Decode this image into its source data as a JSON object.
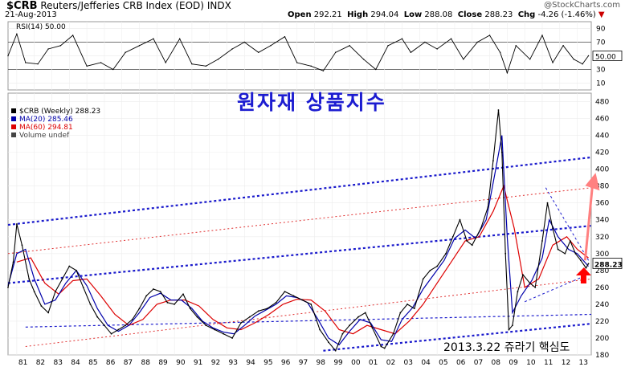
{
  "header": {
    "symbol": "$CRB",
    "name": "Reuters/Jefferies CRB Index (EOD)",
    "exchange": "INDX",
    "watermark": "@StockCharts.com",
    "date": "21-Aug-2013",
    "open_label": "Open",
    "open": "292.21",
    "high_label": "High",
    "high": "294.04",
    "low_label": "Low",
    "low": "288.08",
    "close_label": "Close",
    "close": "288.23",
    "chg_label": "Chg",
    "chg": "-4.26 (-1.46%)",
    "down_marker": "▼"
  },
  "rsi_panel": {
    "legend": "RSI(14) 50.00",
    "ticks": [
      "90",
      "70",
      "50",
      "30",
      "10"
    ],
    "current_value": "50.00"
  },
  "price_panel": {
    "legend_main": "$CRB (Weekly) 288.23",
    "legend_ma20": "MA(20) 285.46",
    "legend_ma60": "MA(60) 294.81",
    "legend_vol": "Volume undef",
    "annotation_title": "원자재 상품지수",
    "annotation_footer": "2013.3.22  쥬라기  핵심도",
    "last_label": "288.23"
  },
  "colors": {
    "price": "#000000",
    "ma20": "#0000aa",
    "ma60": "#dd0000",
    "channel_blue": "#1a1acc",
    "channel_red": "#e03030",
    "arrow": "#ff0000",
    "arrow_light": "#ff8080",
    "annotation": "#1c1cd0"
  },
  "chart_data": {
    "type": "line",
    "ylim": [
      180,
      490
    ],
    "yticks": [
      180,
      200,
      220,
      240,
      260,
      280,
      300,
      320,
      340,
      360,
      380,
      400,
      420,
      440,
      460,
      480
    ],
    "x_ticks": [
      "81",
      "82",
      "83",
      "84",
      "85",
      "86",
      "87",
      "88",
      "89",
      "90",
      "91",
      "92",
      "93",
      "94",
      "95",
      "96",
      "97",
      "98",
      "99",
      "00",
      "01",
      "02",
      "03",
      "04",
      "05",
      "06",
      "07",
      "08",
      "09",
      "10",
      "11",
      "12",
      "13"
    ],
    "x_start_year": 1980.5,
    "x_end_year": 2013.8,
    "price_series": [
      [
        1980.5,
        260
      ],
      [
        1980.8,
        290
      ],
      [
        1981.0,
        335
      ],
      [
        1981.3,
        310
      ],
      [
        1981.7,
        270
      ],
      [
        1982.0,
        255
      ],
      [
        1982.4,
        238
      ],
      [
        1982.8,
        230
      ],
      [
        1983.2,
        255
      ],
      [
        1983.6,
        270
      ],
      [
        1984.0,
        285
      ],
      [
        1984.4,
        280
      ],
      [
        1984.8,
        260
      ],
      [
        1985.2,
        240
      ],
      [
        1985.6,
        225
      ],
      [
        1986.0,
        215
      ],
      [
        1986.4,
        205
      ],
      [
        1986.8,
        210
      ],
      [
        1987.2,
        215
      ],
      [
        1987.6,
        222
      ],
      [
        1988.0,
        235
      ],
      [
        1988.4,
        250
      ],
      [
        1988.8,
        258
      ],
      [
        1989.2,
        255
      ],
      [
        1989.6,
        242
      ],
      [
        1990.0,
        240
      ],
      [
        1990.5,
        252
      ],
      [
        1990.9,
        235
      ],
      [
        1991.3,
        225
      ],
      [
        1991.8,
        215
      ],
      [
        1992.3,
        210
      ],
      [
        1992.8,
        205
      ],
      [
        1993.3,
        200
      ],
      [
        1993.8,
        218
      ],
      [
        1994.3,
        225
      ],
      [
        1994.8,
        232
      ],
      [
        1995.3,
        235
      ],
      [
        1995.8,
        242
      ],
      [
        1996.3,
        255
      ],
      [
        1996.8,
        250
      ],
      [
        1997.3,
        245
      ],
      [
        1997.8,
        240
      ],
      [
        1998.3,
        210
      ],
      [
        1998.8,
        195
      ],
      [
        1999.2,
        185
      ],
      [
        1999.6,
        205
      ],
      [
        2000.0,
        215
      ],
      [
        2000.5,
        225
      ],
      [
        2000.9,
        230
      ],
      [
        2001.3,
        212
      ],
      [
        2001.8,
        190
      ],
      [
        2002.0,
        188
      ],
      [
        2002.5,
        205
      ],
      [
        2002.9,
        230
      ],
      [
        2003.3,
        240
      ],
      [
        2003.7,
        235
      ],
      [
        2004.2,
        270
      ],
      [
        2004.6,
        280
      ],
      [
        2005.0,
        285
      ],
      [
        2005.5,
        300
      ],
      [
        2005.9,
        320
      ],
      [
        2006.3,
        340
      ],
      [
        2006.7,
        315
      ],
      [
        2007.0,
        310
      ],
      [
        2007.5,
        330
      ],
      [
        2007.9,
        355
      ],
      [
        2008.2,
        410
      ],
      [
        2008.5,
        470
      ],
      [
        2008.7,
        420
      ],
      [
        2008.9,
        300
      ],
      [
        2009.1,
        210
      ],
      [
        2009.3,
        215
      ],
      [
        2009.6,
        255
      ],
      [
        2009.9,
        275
      ],
      [
        2010.3,
        265
      ],
      [
        2010.6,
        260
      ],
      [
        2011.0,
        315
      ],
      [
        2011.3,
        360
      ],
      [
        2011.6,
        330
      ],
      [
        2011.9,
        305
      ],
      [
        2012.3,
        300
      ],
      [
        2012.6,
        315
      ],
      [
        2012.9,
        300
      ],
      [
        2013.2,
        292
      ],
      [
        2013.5,
        283
      ],
      [
        2013.64,
        288
      ]
    ],
    "ma20_series": [
      [
        1980.5,
        262
      ],
      [
        1981.0,
        300
      ],
      [
        1981.5,
        305
      ],
      [
        1982.0,
        270
      ],
      [
        1982.6,
        240
      ],
      [
        1983.2,
        245
      ],
      [
        1983.8,
        265
      ],
      [
        1984.4,
        280
      ],
      [
        1985.0,
        262
      ],
      [
        1985.6,
        235
      ],
      [
        1986.2,
        215
      ],
      [
        1986.8,
        208
      ],
      [
        1987.4,
        215
      ],
      [
        1988.0,
        230
      ],
      [
        1988.6,
        248
      ],
      [
        1989.2,
        253
      ],
      [
        1989.8,
        245
      ],
      [
        1990.4,
        245
      ],
      [
        1991.0,
        235
      ],
      [
        1991.6,
        220
      ],
      [
        1992.2,
        212
      ],
      [
        1992.8,
        207
      ],
      [
        1993.4,
        205
      ],
      [
        1994.0,
        215
      ],
      [
        1994.6,
        226
      ],
      [
        1995.2,
        233
      ],
      [
        1995.8,
        240
      ],
      [
        1996.4,
        250
      ],
      [
        1997.0,
        248
      ],
      [
        1997.6,
        242
      ],
      [
        1998.2,
        222
      ],
      [
        1998.8,
        200
      ],
      [
        1999.4,
        192
      ],
      [
        2000.0,
        208
      ],
      [
        2000.6,
        222
      ],
      [
        2001.2,
        218
      ],
      [
        2001.8,
        198
      ],
      [
        2002.4,
        196
      ],
      [
        2003.0,
        222
      ],
      [
        2003.6,
        236
      ],
      [
        2004.2,
        258
      ],
      [
        2004.8,
        275
      ],
      [
        2005.4,
        292
      ],
      [
        2006.0,
        318
      ],
      [
        2006.6,
        328
      ],
      [
        2007.2,
        318
      ],
      [
        2007.8,
        340
      ],
      [
        2008.3,
        395
      ],
      [
        2008.7,
        440
      ],
      [
        2009.0,
        320
      ],
      [
        2009.3,
        230
      ],
      [
        2009.8,
        250
      ],
      [
        2010.4,
        268
      ],
      [
        2011.0,
        295
      ],
      [
        2011.4,
        340
      ],
      [
        2011.9,
        320
      ],
      [
        2012.5,
        305
      ],
      [
        2013.0,
        300
      ],
      [
        2013.64,
        285
      ]
    ],
    "ma60_series": [
      [
        1981.0,
        290
      ],
      [
        1981.8,
        295
      ],
      [
        1982.6,
        265
      ],
      [
        1983.4,
        252
      ],
      [
        1984.2,
        268
      ],
      [
        1985.0,
        270
      ],
      [
        1985.8,
        250
      ],
      [
        1986.6,
        228
      ],
      [
        1987.4,
        215
      ],
      [
        1988.2,
        222
      ],
      [
        1989.0,
        240
      ],
      [
        1989.8,
        245
      ],
      [
        1990.6,
        245
      ],
      [
        1991.4,
        238
      ],
      [
        1992.2,
        222
      ],
      [
        1993.0,
        212
      ],
      [
        1993.8,
        210
      ],
      [
        1994.6,
        218
      ],
      [
        1995.4,
        228
      ],
      [
        1996.2,
        240
      ],
      [
        1997.0,
        246
      ],
      [
        1997.8,
        245
      ],
      [
        1998.6,
        232
      ],
      [
        1999.4,
        210
      ],
      [
        2000.2,
        205
      ],
      [
        2001.0,
        215
      ],
      [
        2001.8,
        210
      ],
      [
        2002.6,
        205
      ],
      [
        2003.4,
        220
      ],
      [
        2004.2,
        240
      ],
      [
        2005.0,
        265
      ],
      [
        2005.8,
        290
      ],
      [
        2006.6,
        315
      ],
      [
        2007.4,
        320
      ],
      [
        2008.2,
        350
      ],
      [
        2008.8,
        380
      ],
      [
        2009.4,
        330
      ],
      [
        2010.0,
        260
      ],
      [
        2010.8,
        270
      ],
      [
        2011.6,
        310
      ],
      [
        2012.4,
        320
      ],
      [
        2013.0,
        305
      ],
      [
        2013.64,
        295
      ]
    ],
    "rsi_series": [
      [
        1980.5,
        50
      ],
      [
        1981.0,
        82
      ],
      [
        1981.5,
        40
      ],
      [
        1982.2,
        38
      ],
      [
        1982.8,
        60
      ],
      [
        1983.5,
        65
      ],
      [
        1984.2,
        80
      ],
      [
        1985.0,
        35
      ],
      [
        1985.8,
        40
      ],
      [
        1986.5,
        30
      ],
      [
        1987.2,
        55
      ],
      [
        1988.0,
        65
      ],
      [
        1988.8,
        75
      ],
      [
        1989.5,
        40
      ],
      [
        1990.3,
        75
      ],
      [
        1991.0,
        38
      ],
      [
        1991.8,
        35
      ],
      [
        1992.5,
        45
      ],
      [
        1993.3,
        60
      ],
      [
        1994.0,
        70
      ],
      [
        1994.8,
        55
      ],
      [
        1995.5,
        65
      ],
      [
        1996.3,
        78
      ],
      [
        1997.0,
        40
      ],
      [
        1997.8,
        35
      ],
      [
        1998.5,
        28
      ],
      [
        1999.2,
        55
      ],
      [
        2000.0,
        65
      ],
      [
        2000.8,
        45
      ],
      [
        2001.5,
        30
      ],
      [
        2002.2,
        65
      ],
      [
        2003.0,
        75
      ],
      [
        2003.5,
        55
      ],
      [
        2004.3,
        70
      ],
      [
        2005.0,
        60
      ],
      [
        2005.8,
        75
      ],
      [
        2006.5,
        45
      ],
      [
        2007.3,
        70
      ],
      [
        2008.0,
        80
      ],
      [
        2008.6,
        55
      ],
      [
        2009.0,
        25
      ],
      [
        2009.5,
        65
      ],
      [
        2010.3,
        45
      ],
      [
        2011.0,
        80
      ],
      [
        2011.6,
        40
      ],
      [
        2012.2,
        65
      ],
      [
        2012.8,
        45
      ],
      [
        2013.3,
        38
      ],
      [
        2013.64,
        50
      ]
    ]
  }
}
